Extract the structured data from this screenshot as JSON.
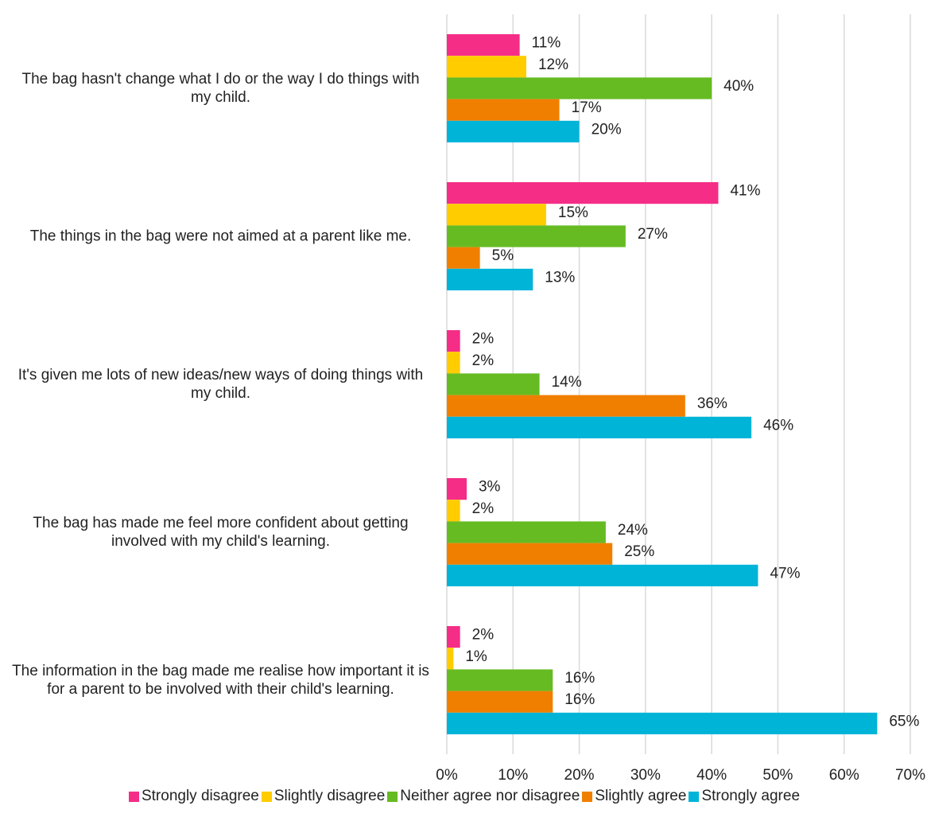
{
  "chart_data": {
    "type": "hbar",
    "categories": [
      "The bag hasn't change what I do or the way I do things with my child.",
      "The things in the bag were not aimed at a parent like me.",
      "It's given me lots of new ideas/new ways of doing things with my child.",
      "The bag has made me feel more confident about getting involved with my child's learning.",
      "The information in the bag made me realise how important it is for a parent to be involved with their child's learning."
    ],
    "series": [
      {
        "name": "Strongly disagree",
        "color": "#f52d87",
        "values": [
          11,
          41,
          2,
          3,
          2
        ],
        "value_labels": [
          "11%",
          "41%",
          "2%",
          "3%",
          "2%"
        ]
      },
      {
        "name": "Slightly disagree",
        "color": "#ffcc00",
        "values": [
          12,
          15,
          2,
          2,
          1
        ],
        "value_labels": [
          "12%",
          "15%",
          "2%",
          "2%",
          "1%"
        ]
      },
      {
        "name": "Neither agree nor disagree",
        "color": "#66bb22",
        "values": [
          40,
          27,
          14,
          24,
          16
        ],
        "value_labels": [
          "40%",
          "27%",
          "14%",
          "24%",
          "16%"
        ]
      },
      {
        "name": "Slightly agree",
        "color": "#f07f00",
        "values": [
          17,
          5,
          36,
          25,
          16
        ],
        "value_labels": [
          "17%",
          "5%",
          "36%",
          "25%",
          "16%"
        ]
      },
      {
        "name": "Strongly agree",
        "color": "#00b4d8",
        "values": [
          20,
          13,
          46,
          47,
          65
        ],
        "value_labels": [
          "20%",
          "13%",
          "46%",
          "47%",
          "65%"
        ]
      }
    ],
    "xlim": [
      0,
      70
    ],
    "xticks": [
      {
        "value": 0,
        "label": "0%"
      },
      {
        "value": 10,
        "label": "10%"
      },
      {
        "value": 20,
        "label": "20%"
      },
      {
        "value": 30,
        "label": "30%"
      },
      {
        "value": 40,
        "label": "40%"
      },
      {
        "value": 50,
        "label": "50%"
      },
      {
        "value": 60,
        "label": "60%"
      },
      {
        "value": 70,
        "label": "70%"
      }
    ],
    "grid": true,
    "legend": "bottom"
  }
}
